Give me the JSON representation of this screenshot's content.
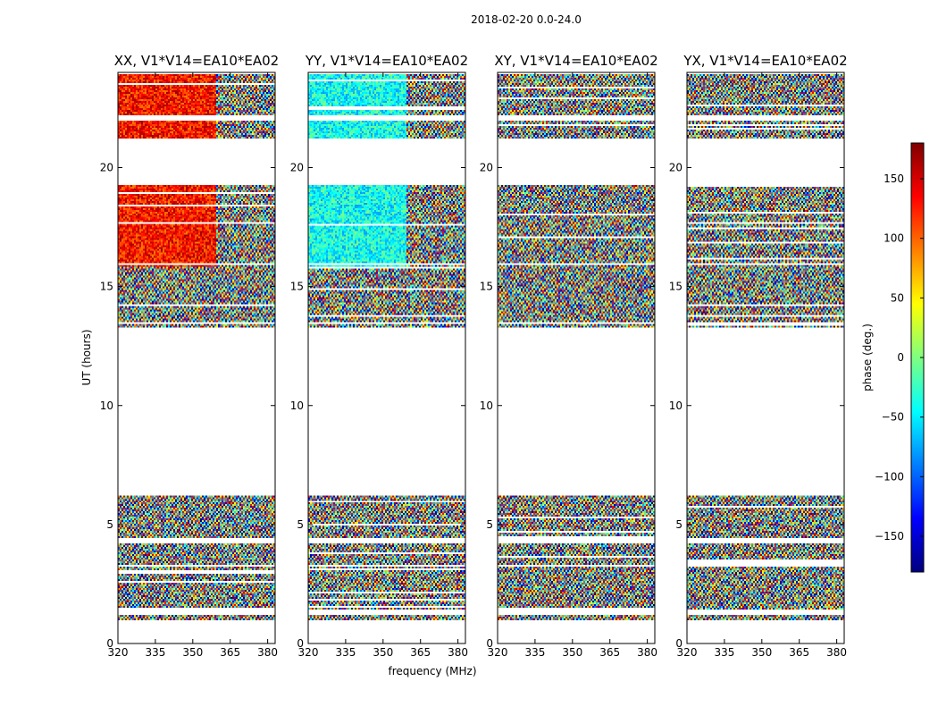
{
  "chart_data": {
    "type": "heatmap",
    "suptitle": "2018-02-20 0.0-24.0",
    "xlabel": "frequency (MHz)",
    "ylabel": "UT (hours)",
    "xlim": [
      320,
      383
    ],
    "ylim": [
      0,
      24
    ],
    "xticks": [
      320,
      335,
      350,
      365,
      380
    ],
    "yticks": [
      0,
      5,
      10,
      15,
      20
    ],
    "panels": [
      {
        "title": "XX, V1*V14=EA10*EA02",
        "pol": "XX",
        "bias_deg": 130
      },
      {
        "title": "YY, V1*V14=EA10*EA02",
        "pol": "YY",
        "bias_deg": -40
      },
      {
        "title": "XY, V1*V14=EA10*EA02",
        "pol": "XY",
        "bias_deg": null
      },
      {
        "title": "YX, V1*V14=EA10*EA02",
        "pol": "YX",
        "bias_deg": null
      }
    ],
    "data_ut_ranges_hours": [
      [
        1.0,
        1.2
      ],
      [
        1.4,
        3.2
      ],
      [
        3.3,
        4.2
      ],
      [
        4.4,
        6.2
      ],
      [
        13.3,
        13.4
      ],
      [
        13.5,
        15.9
      ],
      [
        16.0,
        19.3
      ],
      [
        21.2,
        22.0
      ],
      [
        22.2,
        23.9
      ]
    ],
    "colorbar": {
      "label": "phase (deg.)",
      "min": -180,
      "max": 180,
      "ticks": [
        -150,
        -100,
        -50,
        0,
        50,
        100,
        150
      ],
      "tick_labels": [
        "−150",
        "−100",
        "−50",
        "0",
        "50",
        "100",
        "150"
      ],
      "colormap": [
        "#00007f",
        "#0000ff",
        "#007fff",
        "#00ffff",
        "#7fff7f",
        "#ffff00",
        "#ff7f00",
        "#ff0000",
        "#7f0000"
      ]
    }
  }
}
